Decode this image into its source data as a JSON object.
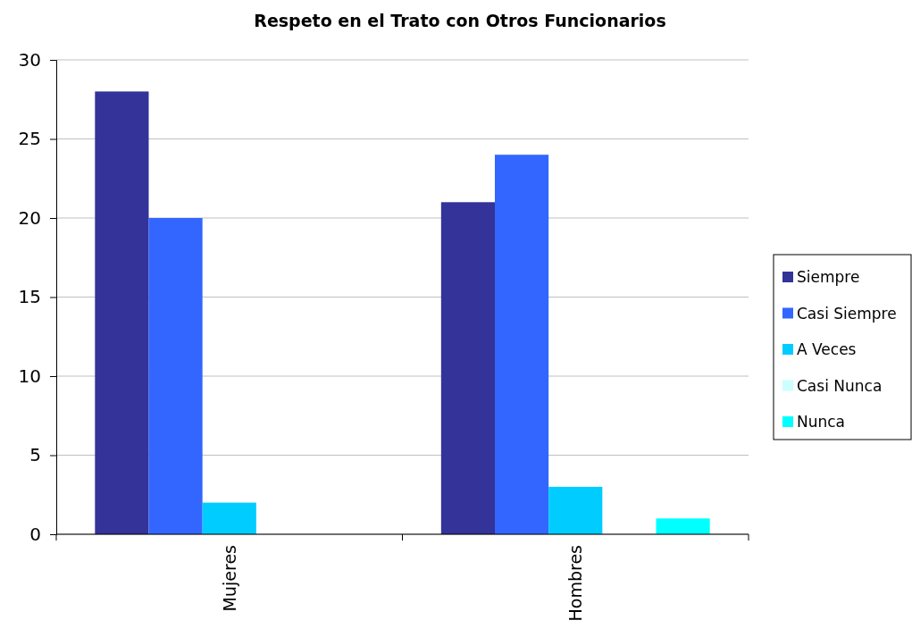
{
  "chart_data": {
    "type": "bar",
    "title": "Respeto en el Trato con Otros Funcionarios",
    "categories": [
      "Mujeres",
      "Hombres"
    ],
    "series": [
      {
        "name": "Siempre",
        "color": "#333399",
        "values": [
          28,
          21
        ]
      },
      {
        "name": "Casi Siempre",
        "color": "#3366ff",
        "values": [
          20,
          24
        ]
      },
      {
        "name": "A Veces",
        "color": "#00ccff",
        "values": [
          2,
          3
        ]
      },
      {
        "name": "Casi Nunca",
        "color": "#ccffff",
        "values": [
          0,
          0
        ]
      },
      {
        "name": "Nunca",
        "color": "#00ffff",
        "values": [
          0,
          1
        ]
      }
    ],
    "ylim": [
      0,
      30
    ],
    "yticks": [
      0,
      5,
      10,
      15,
      20,
      25,
      30
    ],
    "grid": "y",
    "legend": "right"
  }
}
